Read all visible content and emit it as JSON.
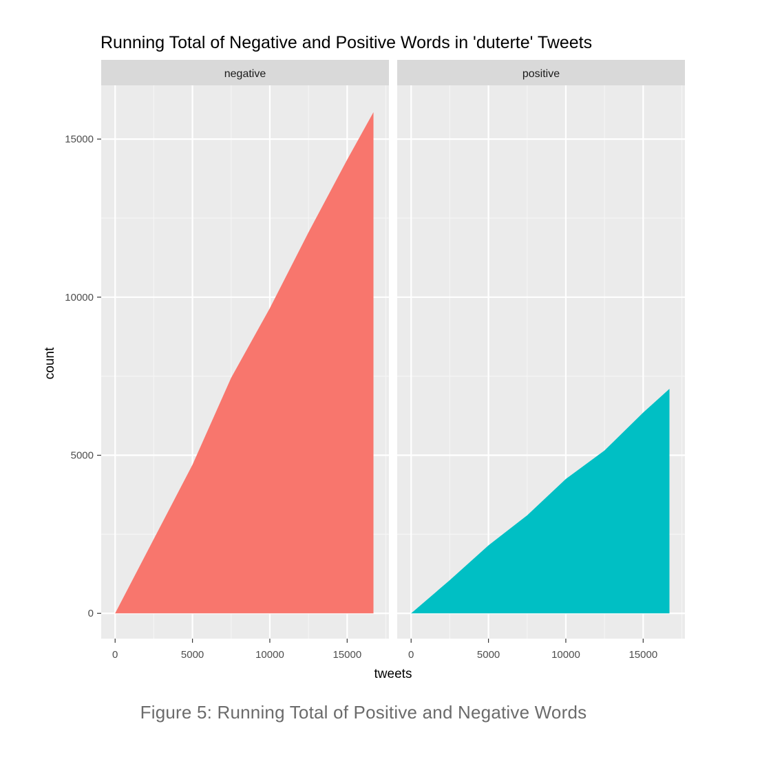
{
  "chart_data": {
    "type": "area",
    "title": "Running Total of Negative and Positive Words in 'duterte' Tweets",
    "xlabel": "tweets",
    "ylabel": "count",
    "xlim": [
      -900,
      17700
    ],
    "ylim": [
      -800,
      16700
    ],
    "x_ticks": [
      0,
      5000,
      10000,
      15000
    ],
    "x_tick_labels": [
      "0",
      "5000",
      "10000",
      "15000"
    ],
    "y_ticks": [
      0,
      5000,
      10000,
      15000
    ],
    "y_tick_labels": [
      "0",
      "5000",
      "10000",
      "15000"
    ],
    "grid": true,
    "facets": [
      {
        "name": "negative",
        "color": "#F8766D",
        "x": [
          0,
          2500,
          5000,
          7500,
          10000,
          12500,
          15000,
          16700
        ],
        "values": [
          0,
          2350,
          4700,
          7450,
          9650,
          12050,
          14350,
          15850
        ]
      },
      {
        "name": "positive",
        "color": "#00BFC4",
        "x": [
          0,
          2500,
          5000,
          7500,
          10000,
          12500,
          15000,
          16700
        ],
        "values": [
          0,
          1050,
          2150,
          3100,
          4250,
          5150,
          6350,
          7100
        ]
      }
    ]
  },
  "caption": "Figure 5: Running Total of Positive and Negative Words"
}
